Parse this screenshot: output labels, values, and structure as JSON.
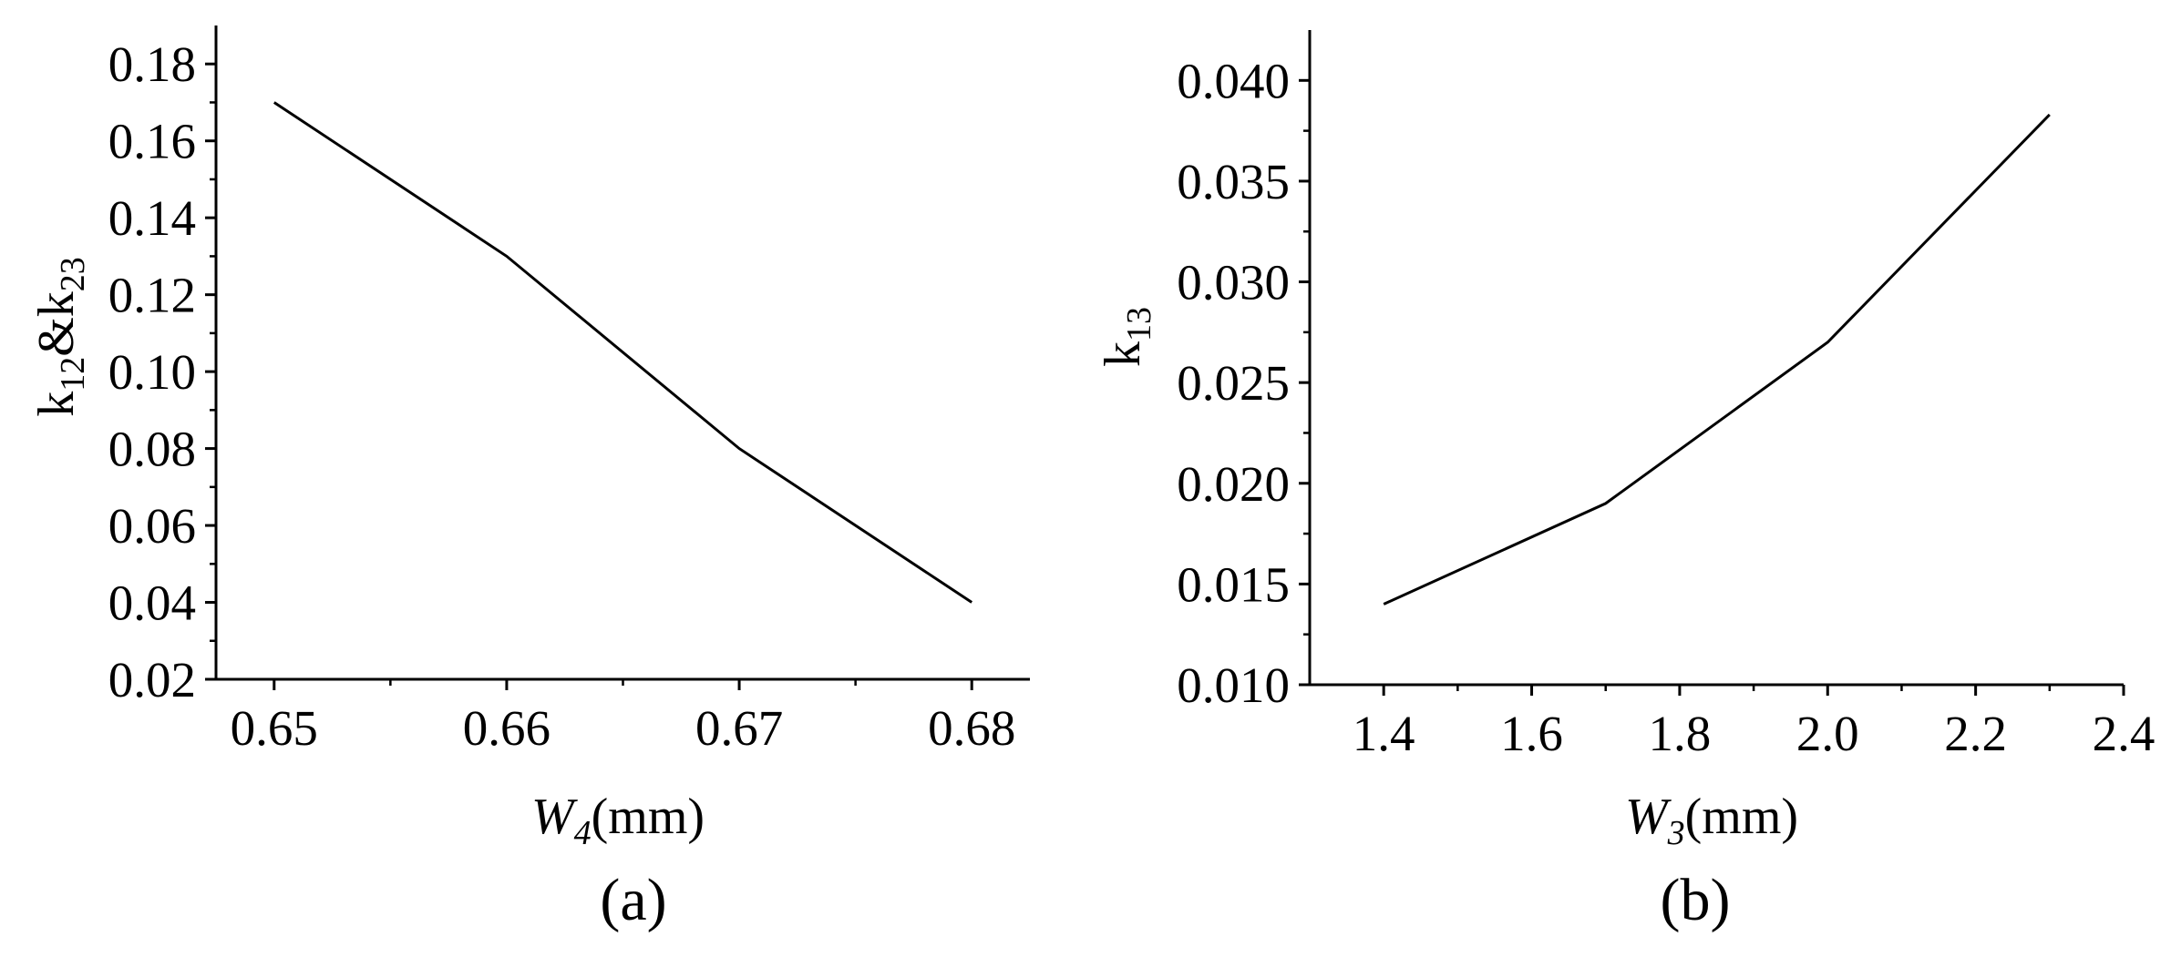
{
  "chart_data": [
    {
      "type": "line",
      "caption": "(a)",
      "x": [
        0.65,
        0.66,
        0.67,
        0.68
      ],
      "series": [
        {
          "values": [
            0.17,
            0.13,
            0.08,
            0.04
          ],
          "color": "#000000"
        }
      ],
      "xlabel": {
        "var": "W",
        "sub": "4",
        "unit": "(mm)"
      },
      "ylabel": {
        "a": "k",
        "a_sub": "12",
        "amp": "&",
        "b": "k",
        "b_sub": "23"
      },
      "xlim": [
        0.6475,
        0.6825
      ],
      "ylim": [
        0.02,
        0.19
      ],
      "xticks": [
        "0.65",
        "0.66",
        "0.67",
        "0.68"
      ],
      "yticks": [
        "0.02",
        "0.04",
        "0.06",
        "0.08",
        "0.10",
        "0.12",
        "0.14",
        "0.16",
        "0.18"
      ],
      "grid": false,
      "legend": "none"
    },
    {
      "type": "line",
      "caption": "(b)",
      "x": [
        1.4,
        1.7,
        2.0,
        2.3
      ],
      "series": [
        {
          "values": [
            0.014,
            0.019,
            0.027,
            0.0383
          ],
          "color": "#000000"
        }
      ],
      "xlabel": {
        "var": "W",
        "sub": "3",
        "unit": "(mm)"
      },
      "ylabel": {
        "a": "k",
        "a_sub": "13"
      },
      "xlim": [
        1.3,
        2.4
      ],
      "ylim": [
        0.01,
        0.0425
      ],
      "xticks": [
        "1.4",
        "1.6",
        "1.8",
        "2.0",
        "2.2",
        "2.4"
      ],
      "yticks": [
        "0.010",
        "0.015",
        "0.020",
        "0.025",
        "0.030",
        "0.035",
        "0.040"
      ],
      "grid": false,
      "legend": "none"
    }
  ]
}
